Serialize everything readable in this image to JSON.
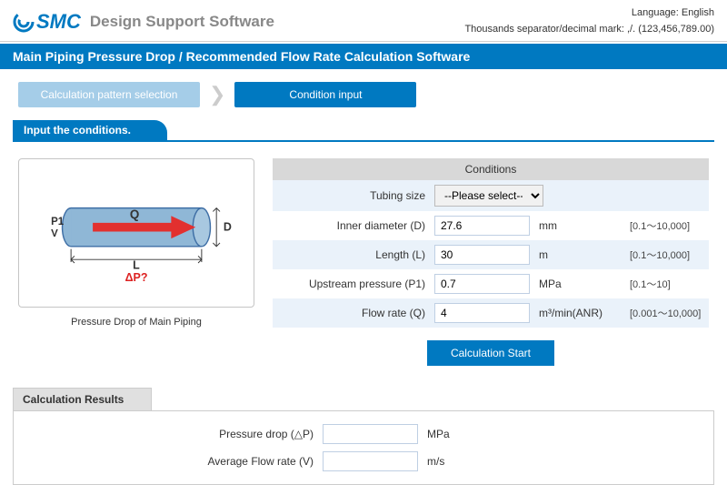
{
  "colors": {
    "brand": "#0079c1",
    "inactive": "#a5cde8",
    "row_alt": "#eaf2fa",
    "header_gray": "#d8d8d8",
    "border_gray": "#c5c5c5"
  },
  "header": {
    "logo_text": "SMC",
    "app_title": "Design Support Software",
    "language_label": "Language: English",
    "separator_note": "Thousands separator/decimal mark: ,/. (123,456,789.00)"
  },
  "title_bar": "Main Piping Pressure Drop / Recommended Flow Rate Calculation Software",
  "steps": {
    "pattern": "Calculation pattern selection",
    "condition": "Condition input"
  },
  "subheader": "Input the conditions.",
  "diagram": {
    "caption": "Pressure Drop of Main Piping",
    "labels": {
      "P1": "P1",
      "V": "V",
      "Q": "Q",
      "D": "D",
      "L": "L",
      "dP": "ΔP?"
    },
    "pipe_fill": "#8fb7d6",
    "pipe_stroke": "#3e6ea5",
    "arrow_color": "#e2302f"
  },
  "form": {
    "header": "Conditions",
    "rows": [
      {
        "key": "tubing",
        "label": "Tubing size",
        "type": "select",
        "placeholder": "--Please select--",
        "value": "",
        "unit": "",
        "range": "",
        "alt": true
      },
      {
        "key": "inner_d",
        "label": "Inner diameter (D)",
        "type": "text",
        "value": "27.6",
        "unit": "mm",
        "range": "[0.1～10,000]",
        "alt": false
      },
      {
        "key": "length",
        "label": "Length (L)",
        "type": "text",
        "value": "30",
        "unit": "m",
        "range": "[0.1～10,000]",
        "alt": true
      },
      {
        "key": "p1",
        "label": "Upstream pressure (P1)",
        "type": "text",
        "value": "0.7",
        "unit": "MPa",
        "range": "[0.1～10]",
        "alt": false
      },
      {
        "key": "flow",
        "label": "Flow rate (Q)",
        "type": "text",
        "value": "4",
        "unit": "m³/min(ANR)",
        "range": "[0.001～10,000]",
        "alt": true
      }
    ],
    "calc_button": "Calculation Start"
  },
  "results": {
    "header": "Calculation Results",
    "rows": [
      {
        "key": "dp",
        "label": "Pressure drop (△P)",
        "value": "",
        "unit": "MPa"
      },
      {
        "key": "avgv",
        "label": "Average Flow rate (V)",
        "value": "",
        "unit": "m/s"
      }
    ]
  }
}
